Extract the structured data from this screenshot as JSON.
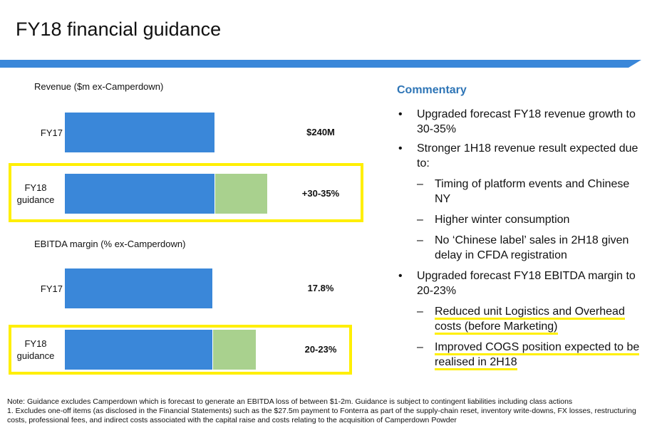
{
  "title": "FY18 financial guidance",
  "chart_data": [
    {
      "type": "bar",
      "title": "Revenue ($m ex-Camperdown)",
      "categories": [
        "FY17",
        "FY18 guidance"
      ],
      "series": [
        {
          "color": "#3a87d9",
          "values": [
            240,
            240
          ]
        },
        {
          "color": "#a9d18e",
          "values": [
            null,
            84
          ]
        }
      ],
      "value_labels": [
        "$240M",
        "+30-35%"
      ]
    },
    {
      "type": "bar",
      "title": "EBITDA margin (% ex-Camperdown)",
      "categories": [
        "FY17",
        "FY18 guidance"
      ],
      "series": [
        {
          "color": "#3a87d9",
          "values": [
            17.8,
            17.8
          ]
        },
        {
          "color": "#a9d18e",
          "values": [
            null,
            5.2
          ]
        }
      ],
      "value_labels": [
        "17.8%",
        "20-23%"
      ]
    }
  ],
  "commentary": {
    "heading": "Commentary",
    "items": [
      {
        "text": "Upgraded forecast FY18 revenue growth to 30-35%",
        "sub": []
      },
      {
        "text": "Stronger 1H18 revenue result expected due to:",
        "sub": [
          "Timing of platform events and Chinese NY",
          "Higher winter consumption",
          "No ‘Chinese label’ sales in 2H18 given delay in CFDA registration"
        ]
      },
      {
        "text": "Upgraded forecast FY18 EBITDA margin to 20-23%",
        "sub": [
          "Reduced unit Logistics and Overhead costs (before Marketing)",
          "Improved COGS position expected to be realised in 2H18"
        ]
      }
    ]
  },
  "notes": [
    "Note: Guidance excludes Camperdown which is forecast to generate an EBITDA loss of between $1-2m. Guidance is subject to contingent liabilities including class actions",
    "1. Excludes one-off items (as disclosed in the Financial Statements) such as the $27.5m payment to Fonterra as part of the supply-chain reset, inventory write-downs, FX losses, restructuring costs, professional fees, and indirect costs associated with the capital raise and costs relating to the acquisition of Camperdown Powder"
  ]
}
